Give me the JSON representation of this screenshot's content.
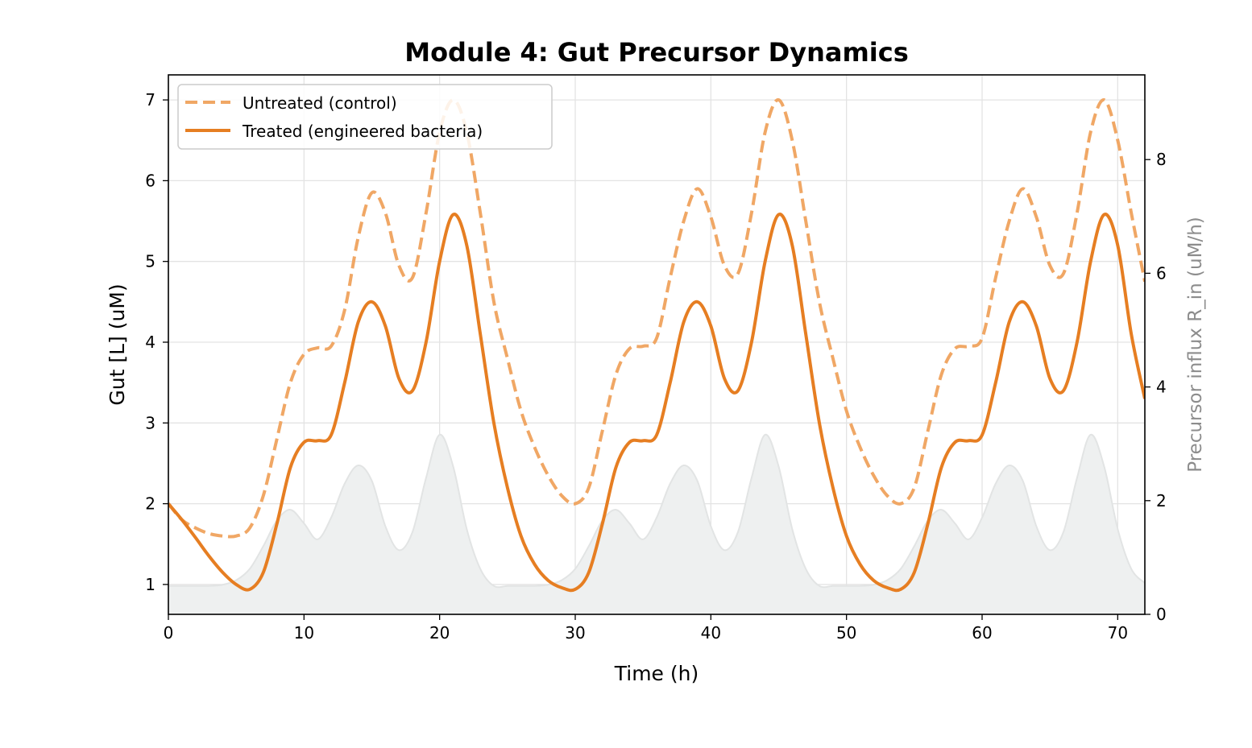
{
  "chart_data": {
    "type": "line",
    "title": "Module 4: Gut Precursor Dynamics",
    "xlabel": "Time (h)",
    "ylabel": "Gut [L] (uM)",
    "ylabel_right": "Precursor influx R_in (uM/h)",
    "xlim": [
      0,
      72
    ],
    "ylim": [
      0.63,
      7.31
    ],
    "ylim_right": [
      0,
      9.49
    ],
    "xticks": [
      0,
      10,
      20,
      30,
      40,
      50,
      60,
      70
    ],
    "yticks": [
      1,
      2,
      3,
      4,
      5,
      6,
      7
    ],
    "yticks_right": [
      0,
      2,
      4,
      6,
      8
    ],
    "grid": true,
    "legend_position": "upper-left",
    "x": [
      0,
      1,
      2,
      3,
      4,
      5,
      6,
      7,
      8,
      9,
      10,
      11,
      12,
      13,
      14,
      15,
      16,
      17,
      18,
      19,
      20,
      21,
      22,
      23,
      24,
      25,
      26,
      27,
      28,
      29,
      30,
      31,
      32,
      33,
      34,
      35,
      36,
      37,
      38,
      39,
      40,
      41,
      42,
      43,
      44,
      45,
      46,
      47,
      48,
      49,
      50,
      51,
      52,
      53,
      54,
      55,
      56,
      57,
      58,
      59,
      60,
      61,
      62,
      63,
      64,
      65,
      66,
      67,
      68,
      69,
      70,
      71,
      72
    ],
    "series": [
      {
        "name": "Untreated (control)",
        "style": "dashed",
        "color": "#f0a765",
        "axis": "left",
        "values": [
          2.0,
          1.8,
          1.7,
          1.63,
          1.6,
          1.6,
          1.7,
          2.1,
          2.8,
          3.5,
          3.85,
          3.93,
          3.95,
          4.4,
          5.3,
          5.85,
          5.6,
          4.95,
          4.8,
          5.6,
          6.6,
          7.0,
          6.6,
          5.6,
          4.5,
          3.8,
          3.15,
          2.7,
          2.35,
          2.1,
          2.0,
          2.2,
          2.9,
          3.6,
          3.92,
          3.95,
          4.05,
          4.8,
          5.5,
          5.9,
          5.55,
          4.95,
          4.85,
          5.6,
          6.6,
          7.0,
          6.5,
          5.5,
          4.5,
          3.8,
          3.15,
          2.7,
          2.35,
          2.1,
          2.0,
          2.2,
          2.9,
          3.6,
          3.92,
          3.95,
          4.05,
          4.8,
          5.5,
          5.9,
          5.55,
          4.95,
          4.85,
          5.6,
          6.6,
          7.0,
          6.5,
          5.6,
          4.75
        ]
      },
      {
        "name": "Treated (engineered bacteria)",
        "style": "solid",
        "color": "#e67e22",
        "axis": "left",
        "values": [
          2.0,
          1.8,
          1.58,
          1.35,
          1.15,
          1.0,
          0.94,
          1.15,
          1.75,
          2.45,
          2.76,
          2.78,
          2.85,
          3.5,
          4.25,
          4.5,
          4.2,
          3.55,
          3.4,
          4.0,
          5.0,
          5.58,
          5.2,
          4.1,
          3.0,
          2.2,
          1.6,
          1.25,
          1.05,
          0.96,
          0.94,
          1.15,
          1.75,
          2.45,
          2.76,
          2.78,
          2.85,
          3.5,
          4.25,
          4.5,
          4.2,
          3.55,
          3.4,
          4.0,
          5.0,
          5.58,
          5.2,
          4.1,
          3.0,
          2.2,
          1.6,
          1.25,
          1.05,
          0.96,
          0.94,
          1.15,
          1.75,
          2.45,
          2.76,
          2.78,
          2.85,
          3.5,
          4.25,
          4.5,
          4.2,
          3.55,
          3.4,
          4.0,
          5.0,
          5.58,
          5.2,
          4.1,
          3.3
        ]
      },
      {
        "name": "",
        "style": "area",
        "color": "#eef0f0",
        "axis": "right",
        "values": [
          0.5,
          0.5,
          0.5,
          0.5,
          0.52,
          0.6,
          0.8,
          1.2,
          1.65,
          1.84,
          1.6,
          1.32,
          1.7,
          2.3,
          2.62,
          2.35,
          1.55,
          1.13,
          1.45,
          2.4,
          3.16,
          2.6,
          1.5,
          0.8,
          0.5,
          0.5,
          0.5,
          0.5,
          0.52,
          0.6,
          0.8,
          1.2,
          1.65,
          1.84,
          1.6,
          1.32,
          1.7,
          2.3,
          2.62,
          2.35,
          1.55,
          1.13,
          1.45,
          2.4,
          3.16,
          2.6,
          1.5,
          0.8,
          0.5,
          0.5,
          0.5,
          0.5,
          0.52,
          0.6,
          0.8,
          1.2,
          1.65,
          1.84,
          1.6,
          1.32,
          1.7,
          2.3,
          2.62,
          2.35,
          1.55,
          1.13,
          1.45,
          2.4,
          3.16,
          2.6,
          1.5,
          0.8,
          0.55
        ]
      }
    ]
  }
}
